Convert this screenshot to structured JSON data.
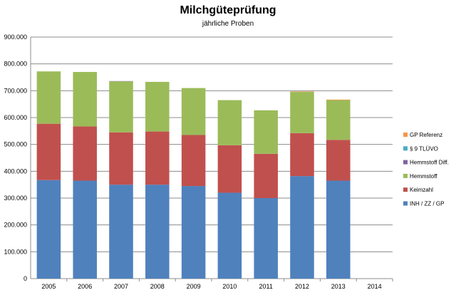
{
  "chart_data": {
    "type": "bar",
    "stacked": true,
    "title": "Milchgüteprüfung",
    "subtitle": "jährliche Proben",
    "categories": [
      "2005",
      "2006",
      "2007",
      "2008",
      "2009",
      "2010",
      "2011",
      "2012",
      "2013",
      "2014"
    ],
    "ylim": [
      0,
      900000
    ],
    "yticks": [
      "0",
      "100.000",
      "200.000",
      "300.000",
      "400.000",
      "500.000",
      "600.000",
      "700.000",
      "800.000",
      "900.000"
    ],
    "ytick_values": [
      0,
      100000,
      200000,
      300000,
      400000,
      500000,
      600000,
      700000,
      800000,
      900000
    ],
    "grid": true,
    "legend_position": "right",
    "series": [
      {
        "name": "INH / ZZ / GP",
        "color": "#4F81BD",
        "values": [
          367000,
          365000,
          350000,
          350000,
          345000,
          320000,
          300000,
          382000,
          365000,
          0
        ]
      },
      {
        "name": "Keimzahl",
        "color": "#C0504D",
        "values": [
          210000,
          202000,
          195000,
          198000,
          190000,
          177000,
          165000,
          160000,
          152000,
          0
        ]
      },
      {
        "name": "Hemmstoff",
        "color": "#9BBB59",
        "values": [
          195000,
          203000,
          190000,
          185000,
          175000,
          168000,
          162000,
          154000,
          148000,
          0
        ]
      },
      {
        "name": "Hemmstoff Diff.",
        "color": "#8064A2",
        "values": [
          0,
          0,
          1000,
          0,
          0,
          0,
          0,
          0,
          0,
          0
        ]
      },
      {
        "name": "§ 9 TLÜVO",
        "color": "#4BACC6",
        "values": [
          0,
          0,
          0,
          0,
          0,
          0,
          0,
          0,
          0,
          0
        ]
      },
      {
        "name": "GP Referenz",
        "color": "#F79646",
        "values": [
          0,
          0,
          0,
          0,
          0,
          0,
          0,
          1500,
          2000,
          0
        ]
      }
    ],
    "legend_order": [
      "GP Referenz",
      "§ 9 TLÜVO",
      "Hemmstoff Diff.",
      "Hemmstoff",
      "Keimzahl",
      "INH / ZZ / GP"
    ]
  }
}
